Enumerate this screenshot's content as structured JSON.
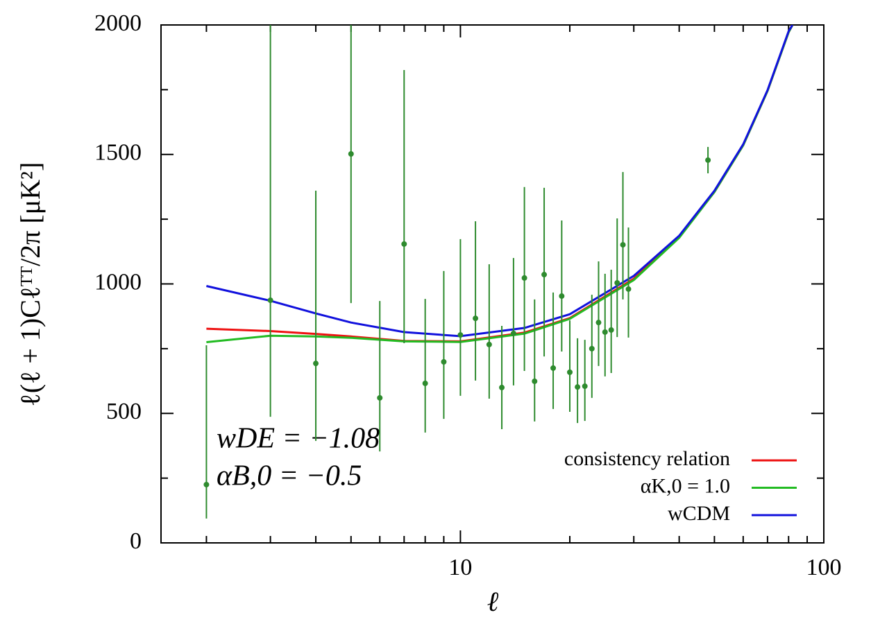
{
  "chart_data": {
    "type": "line",
    "xlabel": "ℓ",
    "ylabel": "ℓ(ℓ + 1)Cℓᵀᵀ/2π [μK²]",
    "xscale": "log",
    "xlim": [
      1.5,
      100
    ],
    "ylim": [
      0,
      2000
    ],
    "xticks": [
      10,
      100
    ],
    "yticks": [
      0,
      500,
      1000,
      1500,
      2000
    ],
    "x_minor_ticks": [
      2,
      3,
      4,
      5,
      6,
      7,
      8,
      9,
      20,
      30,
      40,
      50,
      60,
      70,
      80,
      90
    ],
    "y_minor_ticks": [
      250,
      750,
      1250,
      1750
    ],
    "legend": "lower right",
    "annotations": [
      "wDE = −1.08",
      "αB,0 = −0.5"
    ],
    "series": [
      {
        "name": "consistency relation",
        "type": "line",
        "color": "#ee1111",
        "x": [
          2,
          3,
          4,
          5,
          7,
          10,
          15,
          20,
          30,
          40,
          50,
          60,
          70,
          80,
          82
        ],
        "values": [
          827,
          818,
          807,
          797,
          780,
          778,
          812,
          868,
          1020,
          1180,
          1355,
          1535,
          1745,
          1972,
          2000
        ]
      },
      {
        "name": "αK,0 = 1.0",
        "type": "line",
        "color": "#22bb22",
        "x": [
          2,
          3,
          4,
          5,
          7,
          10,
          15,
          20,
          30,
          40,
          50,
          60,
          70,
          80,
          82
        ],
        "values": [
          775,
          800,
          797,
          792,
          778,
          776,
          808,
          865,
          1015,
          1178,
          1355,
          1535,
          1745,
          1972,
          2000
        ]
      },
      {
        "name": "wCDM",
        "type": "line",
        "color": "#1111dd",
        "x": [
          2,
          3,
          4,
          5,
          7,
          10,
          15,
          20,
          30,
          40,
          50,
          60,
          70,
          80,
          82
        ],
        "values": [
          992,
          935,
          886,
          851,
          814,
          798,
          830,
          883,
          1031,
          1186,
          1360,
          1539,
          1748,
          1976,
          2000
        ]
      },
      {
        "type": "scatter",
        "color": "#2e8b2e",
        "x": [
          2,
          3,
          4,
          5,
          6,
          7,
          8,
          9,
          10,
          11,
          12,
          13,
          14,
          15,
          16,
          17,
          18,
          19,
          20,
          21,
          22,
          23,
          24,
          25,
          26,
          27,
          28,
          29,
          48
        ],
        "values": [
          225,
          937,
          693,
          1502,
          560,
          1154,
          616,
          699,
          803,
          867,
          766,
          600,
          809,
          1023,
          624,
          1036,
          675,
          953,
          659,
          602,
          605,
          750,
          851,
          814,
          822,
          1004,
          1151,
          980,
          1478
        ],
        "lower": [
          94,
          487,
          394,
          926,
          353,
          771,
          426,
          479,
          568,
          627,
          557,
          439,
          608,
          664,
          469,
          720,
          517,
          739,
          506,
          463,
          471,
          560,
          683,
          643,
          656,
          795,
          940,
          793,
          1427
        ],
        "upper": [
          763,
          2000,
          1360,
          2000,
          934,
          1826,
          942,
          1050,
          1173,
          1242,
          1076,
          838,
          1100,
          1374,
          940,
          1371,
          967,
          1245,
          859,
          790,
          784,
          958,
          1087,
          1039,
          1055,
          1253,
          1432,
          1218,
          1529
        ]
      }
    ]
  }
}
